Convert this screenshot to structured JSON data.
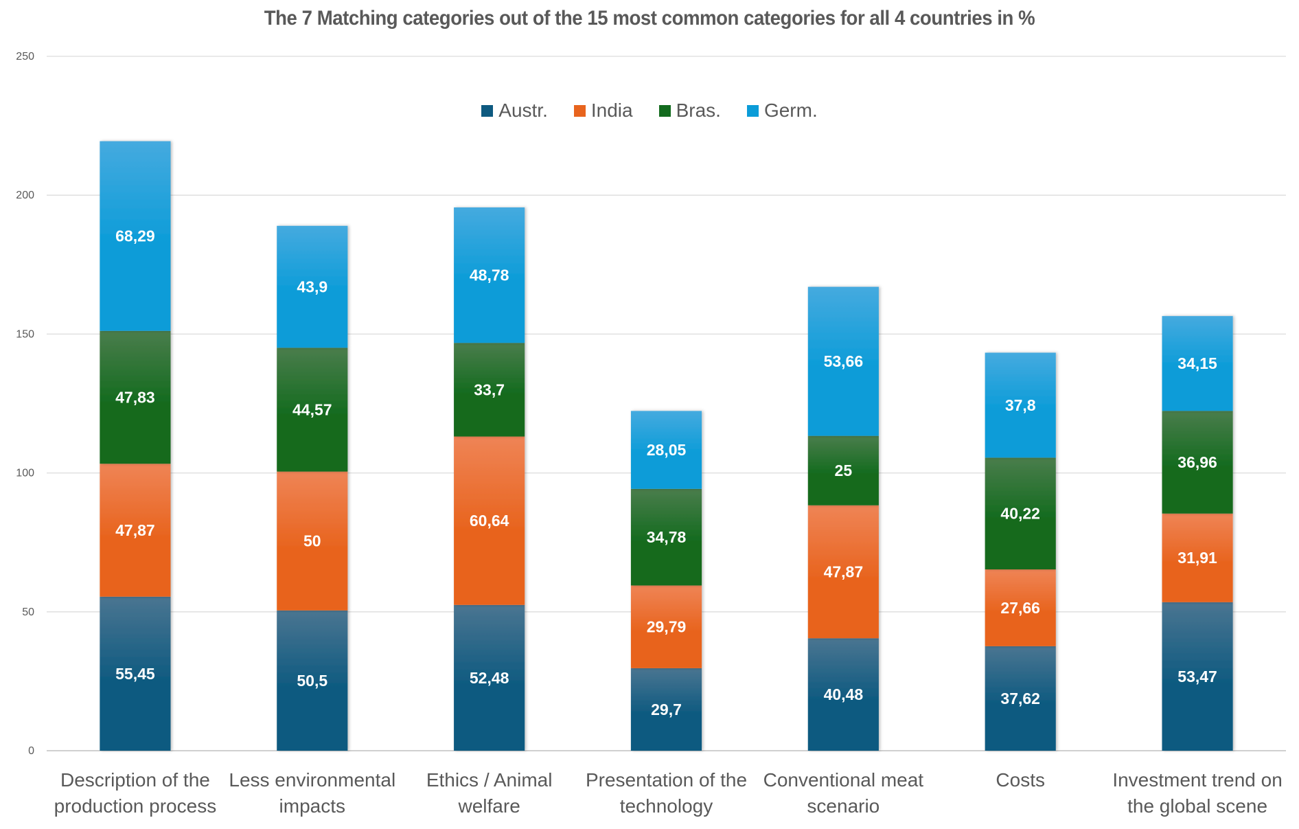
{
  "chart_data": {
    "type": "bar",
    "stacked": true,
    "title": "The 7 Matching categories out of the 15 most common categories for all 4 countries in %",
    "xlabel": "",
    "ylabel": "",
    "ylim": [
      0,
      250
    ],
    "yticks": [
      0,
      50,
      100,
      150,
      200,
      250
    ],
    "grid": true,
    "legend_position": "top-center",
    "categories": [
      [
        "Description of the",
        "production process"
      ],
      [
        "Less environmental",
        "impacts"
      ],
      [
        "Ethics / Animal",
        "welfare"
      ],
      [
        "Presentation of the",
        "technology"
      ],
      [
        "Conventional meat",
        "scenario"
      ],
      [
        "Costs"
      ],
      [
        "Investment trend on",
        "the global scene"
      ]
    ],
    "series": [
      {
        "name": "Austr.",
        "color": "#0E5A80",
        "values": [
          55.45,
          50.5,
          52.48,
          29.7,
          40.48,
          37.62,
          53.47
        ],
        "labels": [
          "55,45",
          "50,5",
          "52,48",
          "29,7",
          "40,48",
          "37,62",
          "53,47"
        ]
      },
      {
        "name": "India",
        "color": "#E8641E",
        "values": [
          47.87,
          50,
          60.64,
          29.79,
          47.87,
          27.66,
          31.91
        ],
        "labels": [
          "47,87",
          "50",
          "60,64",
          "29,79",
          "47,87",
          "27,66",
          "31,91"
        ]
      },
      {
        "name": "Bras.",
        "color": "#136B1E",
        "values": [
          47.83,
          44.57,
          33.7,
          34.78,
          25,
          40.22,
          36.96
        ],
        "labels": [
          "47,83",
          "44,57",
          "33,7",
          "34,78",
          "25",
          "40,22",
          "36,96"
        ]
      },
      {
        "name": "Germ.",
        "color": "#0B9CD8",
        "values": [
          68.29,
          43.9,
          48.78,
          28.05,
          53.66,
          37.8,
          34.15
        ],
        "labels": [
          "68,29",
          "43,9",
          "48,78",
          "28,05",
          "53,66",
          "37,8",
          "34,15"
        ]
      }
    ]
  }
}
